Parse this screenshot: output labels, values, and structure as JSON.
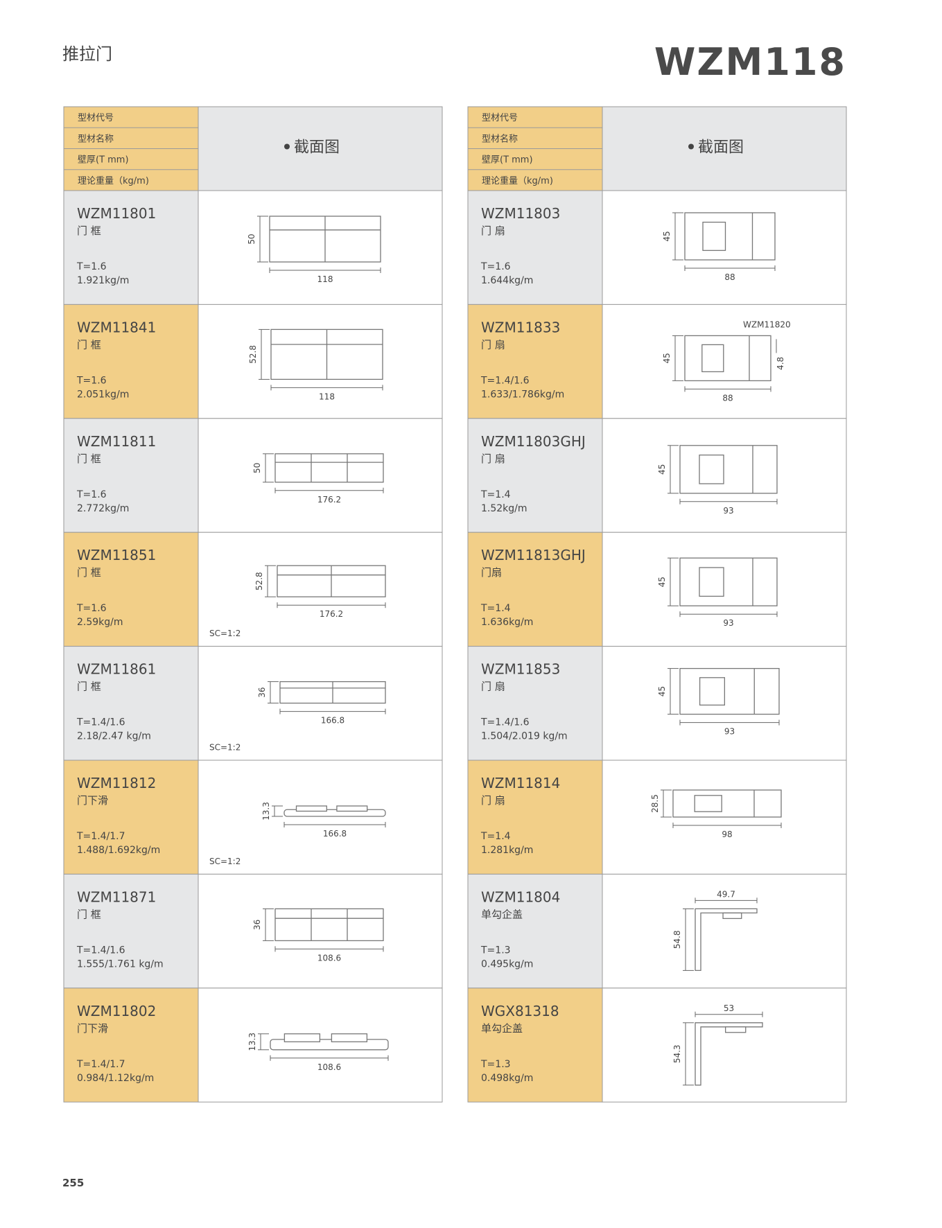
{
  "header": {
    "category": "推拉门",
    "model": "WZM118"
  },
  "tables": [
    {
      "header_labels": [
        "型材代号",
        "型材名称",
        "壁厚(T mm)",
        "理论重量（kg/m)"
      ],
      "header_section": "截面图",
      "rows": [
        {
          "code": "WZM11801",
          "name": "门 框",
          "thickness": "T=1.6",
          "weight": "1.921kg/m",
          "height_dim": 50,
          "width_dim": 118
        },
        {
          "code": "WZM11841",
          "name": "门 框",
          "thickness": "T=1.6",
          "weight": "2.051kg/m",
          "height_dim": 52.8,
          "width_dim": 118
        },
        {
          "code": "WZM11811",
          "name": "门 框",
          "thickness": "T=1.6",
          "weight": "2.772kg/m",
          "height_dim": 50,
          "width_dim": 176.2
        },
        {
          "code": "WZM11851",
          "name": "门 框",
          "thickness": "T=1.6",
          "weight": "2.59kg/m",
          "height_dim": 52.8,
          "width_dim": 176.2,
          "scale": "SC=1:2"
        },
        {
          "code": "WZM11861",
          "name": "门 框",
          "thickness": "T=1.4/1.6",
          "weight": "2.18/2.47 kg/m",
          "height_dim": 36,
          "width_dim": 166.8,
          "scale": "SC=1:2"
        },
        {
          "code": "WZM11812",
          "name": "门下滑",
          "thickness": "T=1.4/1.7",
          "weight": "1.488/1.692kg/m",
          "height_dim": 13.3,
          "width_dim": 166.8,
          "scale": "SC=1:2"
        },
        {
          "code": "WZM11871",
          "name": "门 框",
          "thickness": "T=1.4/1.6",
          "weight": "1.555/1.761 kg/m",
          "height_dim": 36,
          "width_dim": 108.6
        },
        {
          "code": "WZM11802",
          "name": "门下滑",
          "thickness": "T=1.4/1.7",
          "weight": "0.984/1.12kg/m",
          "height_dim": 13.3,
          "width_dim": 108.6
        }
      ]
    },
    {
      "header_labels": [
        "型材代号",
        "型材名称",
        "壁厚(T mm)",
        "理论重量（kg/m)"
      ],
      "header_section": "截面图",
      "rows": [
        {
          "code": "WZM11803",
          "name": "门 扇",
          "thickness": "T=1.6",
          "weight": "1.644kg/m",
          "height_dim": 45,
          "width_dim": 88
        },
        {
          "code": "WZM11833",
          "name": "门 扇",
          "thickness": "T=1.4/1.6",
          "weight": "1.633/1.786kg/m",
          "height_dim": 45,
          "width_dim": 88,
          "side_dim": 4.8,
          "note": "WZM11820"
        },
        {
          "code": "WZM11803GHJ",
          "name": "门 扇",
          "thickness": "T=1.4",
          "weight": "1.52kg/m",
          "height_dim": 45,
          "width_dim": 93
        },
        {
          "code": "WZM11813GHJ",
          "name": "门扇",
          "thickness": "T=1.4",
          "weight": "1.636kg/m",
          "height_dim": 45,
          "width_dim": 93
        },
        {
          "code": "WZM11853",
          "name": "门 扇",
          "thickness": "T=1.4/1.6",
          "weight": "1.504/2.019 kg/m",
          "height_dim": 45,
          "width_dim": 93
        },
        {
          "code": "WZM11814",
          "name": "门 扇",
          "thickness": "T=1.4",
          "weight": "1.281kg/m",
          "height_dim": 28.5,
          "width_dim": 98
        },
        {
          "code": "WZM11804",
          "name": "单勾企盖",
          "thickness": "T=1.3",
          "weight": "0.495kg/m",
          "height_dim": 54.8,
          "width_dim": 49.7
        },
        {
          "code": "WGX81318",
          "name": "单勾企盖",
          "thickness": "T=1.3",
          "weight": "0.498kg/m",
          "height_dim": 54.3,
          "width_dim": 53
        }
      ]
    }
  ],
  "page_number": "255"
}
